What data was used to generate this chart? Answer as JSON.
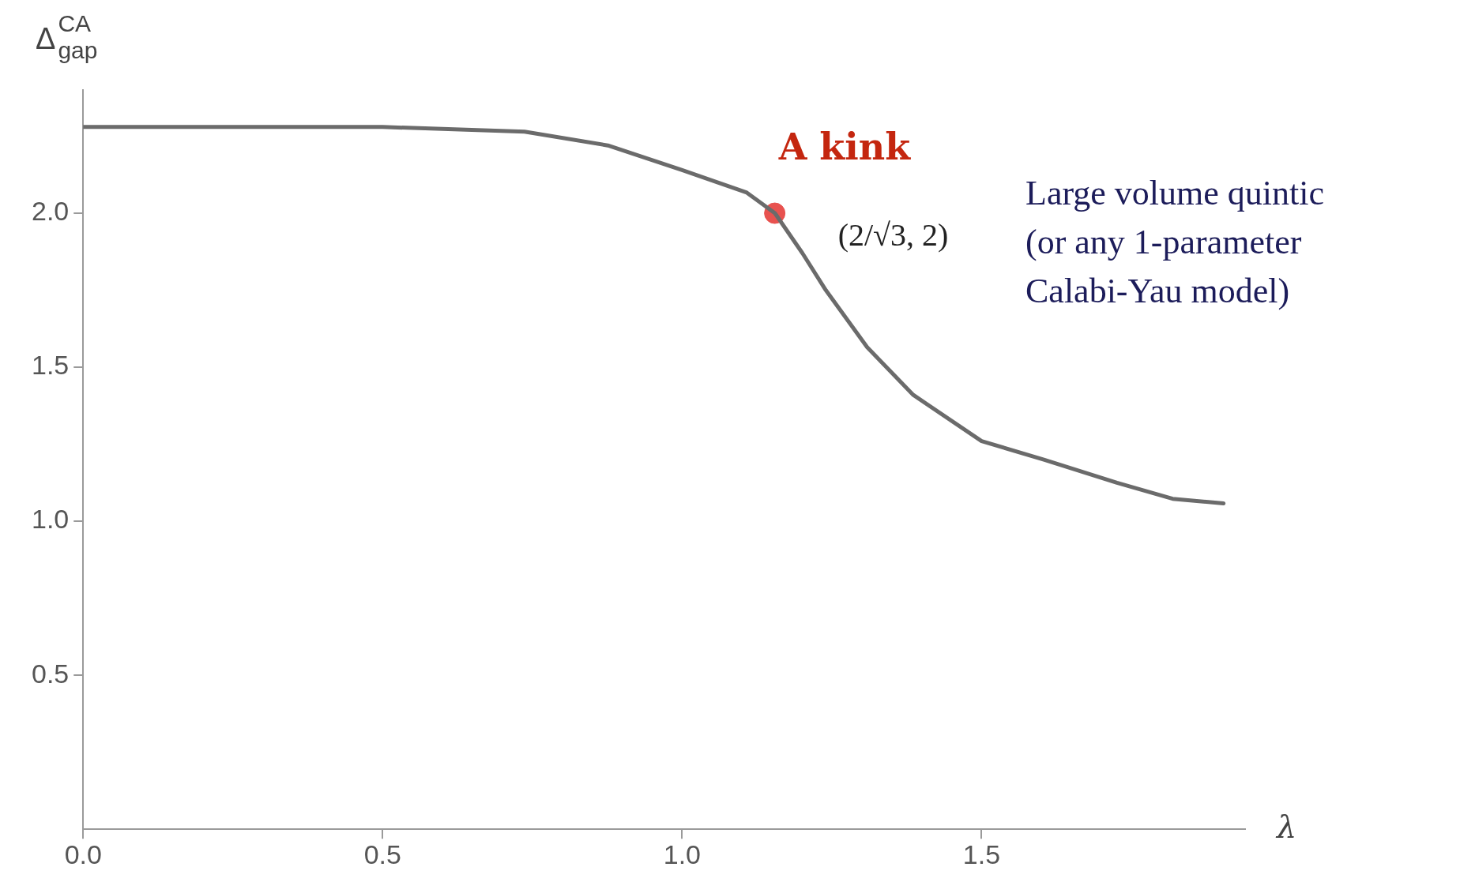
{
  "chart_data": {
    "type": "line",
    "xlabel": "λ",
    "ylabel": "Δ$^{CA}$$_{gap}$",
    "xlim": [
      0,
      1.94
    ],
    "ylim": [
      0,
      2.4
    ],
    "xticks": [
      {
        "value": 0,
        "label": "0.0"
      },
      0.5,
      {
        "value": 1,
        "label": "1.0"
      },
      1.5
    ],
    "yticks": [
      0.5,
      {
        "value": 1,
        "label": "1.0"
      },
      1.5,
      {
        "value": 2,
        "label": "2.0"
      }
    ],
    "grid": false,
    "legend": false,
    "series": [
      {
        "color": "#6b6b6b",
        "marker": "none",
        "x": [
          0,
          0.5,
          0.737,
          0.876,
          1,
          1.108,
          1.155,
          1.201,
          1.24,
          1.309,
          1.386,
          1.5,
          1.604,
          1.726,
          1.819,
          1.904
        ],
        "values": [
          2.28,
          2.28,
          2.265,
          2.22,
          2.14,
          2.067,
          2.0,
          1.87,
          1.75,
          1.565,
          1.41,
          1.26,
          1.2,
          1.125,
          1.073,
          1.058
        ]
      },
      {
        "type": "scatter",
        "color": "#e8524f",
        "marker": "circle",
        "x": [
          1.1547
        ],
        "values": [
          2
        ]
      }
    ],
    "annotations": [
      {
        "text": "A kink",
        "x": 1.1547,
        "y": 2
      },
      {
        "text": "(2/√3, 2)",
        "x": 1.1547,
        "y": 2
      },
      "Large volume quintic\n(or any 1-parameter\nCalabi-Yau model)"
    ]
  }
}
